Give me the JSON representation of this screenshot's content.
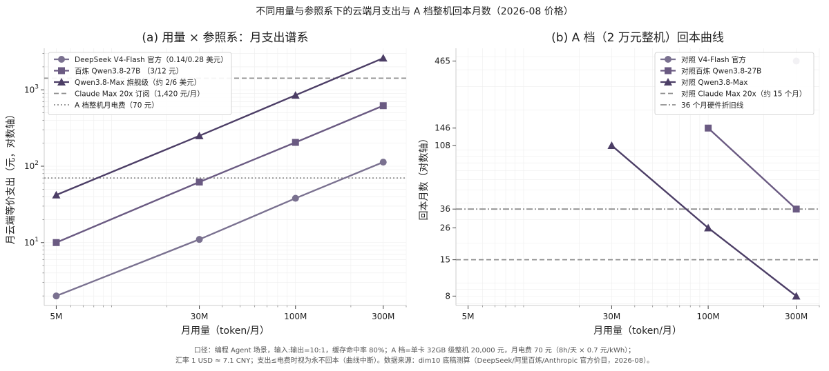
{
  "figure": {
    "title": "不同用量与参照系下的云端月支出与 A 档整机回本月数（2026-08 价格）",
    "footnote": [
      "口径：编程 Agent 场景，输入:输出=10:1，缓存命中率 80%；A 档=单卡 32GB 级整机 20,000 元，月电费 70 元（8h/天 × 0.7 元/kWh）；",
      "汇率 1 USD ≈ 7.1 CNY；支出≤电费时视为永不回本（曲线中断）。数据来源：dim10 底稿测算（DeepSeek/阿里百炼/Anthropic 官方价目，2026-08）。"
    ]
  },
  "colors": {
    "series1": "#7a7190",
    "series2": "#6a5a82",
    "series3": "#4c3e66",
    "ref_line": "#8f8f8f",
    "axis": "#cccccc",
    "grid": "#eeeeee"
  },
  "chart_data": [
    {
      "type": "line",
      "title": "(a) 用量 × 参照系：月支出谱系",
      "xlabel": "月用量（token/月）",
      "ylabel": "月云端等价支出（元，对数轴）",
      "x_scale": "log",
      "y_scale": "log",
      "xlim": [
        4300000,
        400000000
      ],
      "ylim": [
        1.5,
        3500
      ],
      "x_ticks": [
        {
          "value": 5000000,
          "label": "5M"
        },
        {
          "value": 30000000,
          "label": "30M"
        },
        {
          "value": 100000000,
          "label": "100M"
        },
        {
          "value": 300000000,
          "label": "300M"
        }
      ],
      "y_ticks": [
        {
          "value": 10,
          "base": "10",
          "exp": "1"
        },
        {
          "value": 100,
          "base": "10",
          "exp": "2"
        },
        {
          "value": 1000,
          "base": "10",
          "exp": "3"
        }
      ],
      "legend_position": "top-left",
      "grid": true,
      "series": [
        {
          "name": "DeepSeek V4-Flash 官方（0.14/0.28 美元）",
          "marker": "circle",
          "color_key": "series1",
          "x": [
            5000000,
            30000000,
            100000000,
            300000000
          ],
          "y": [
            2,
            11,
            38,
            113
          ]
        },
        {
          "name": "百炼 Qwen3.8-27B （3/12 元）",
          "marker": "square",
          "color_key": "series2",
          "x": [
            5000000,
            30000000,
            100000000,
            300000000
          ],
          "y": [
            10,
            62,
            205,
            620
          ]
        },
        {
          "name": "Qwen3.8-Max 旗舰级（约 2/6 美元）",
          "marker": "triangle",
          "color_key": "series3",
          "x": [
            5000000,
            30000000,
            100000000,
            300000000
          ],
          "y": [
            42,
            250,
            850,
            2600
          ]
        }
      ],
      "reference_lines": [
        {
          "name": "Claude Max 20x 订阅（1,420 元/月）",
          "y": 1420,
          "style": "dashed"
        },
        {
          "name": "A 档整机月电费（70 元）",
          "y": 70,
          "style": "dotted"
        }
      ]
    },
    {
      "type": "line",
      "title": "(b) A 档（2 万元整机）回本曲线",
      "xlabel": "月用量（token/月）",
      "ylabel": "回本月数（对数轴）",
      "x_scale": "log",
      "y_scale": "log",
      "xlim": [
        4300000,
        400000000
      ],
      "ylim": [
        6.8,
        580
      ],
      "x_ticks": [
        {
          "value": 5000000,
          "label": "5M"
        },
        {
          "value": 30000000,
          "label": "30M"
        },
        {
          "value": 100000000,
          "label": "100M"
        },
        {
          "value": 300000000,
          "label": "300M"
        }
      ],
      "y_ticks": [
        {
          "value": 8,
          "label": "8"
        },
        {
          "value": 15,
          "label": "15"
        },
        {
          "value": 26,
          "label": "26"
        },
        {
          "value": 36,
          "label": "36"
        },
        {
          "value": 108,
          "label": "108"
        },
        {
          "value": 146,
          "label": "146"
        },
        {
          "value": 465,
          "label": "465"
        }
      ],
      "legend_position": "top-right",
      "grid": true,
      "series": [
        {
          "name": "对照 V4-Flash 官方",
          "marker": "circle",
          "color_key": "series1",
          "x": [
            300000000
          ],
          "y": [
            465
          ]
        },
        {
          "name": "对照百炼 Qwen3.8-27B",
          "marker": "square",
          "color_key": "series2",
          "x": [
            100000000,
            300000000
          ],
          "y": [
            146,
            36
          ]
        },
        {
          "name": "对照 Qwen3.8-Max",
          "marker": "triangle",
          "color_key": "series3",
          "x": [
            30000000,
            100000000,
            300000000
          ],
          "y": [
            108,
            26,
            8
          ]
        }
      ],
      "reference_lines": [
        {
          "name": "对照 Claude Max 20x（约 15 个月）",
          "y": 15,
          "style": "dashed"
        },
        {
          "name": "36 个月硬件折旧线",
          "y": 36,
          "style": "dashdot"
        }
      ]
    }
  ]
}
